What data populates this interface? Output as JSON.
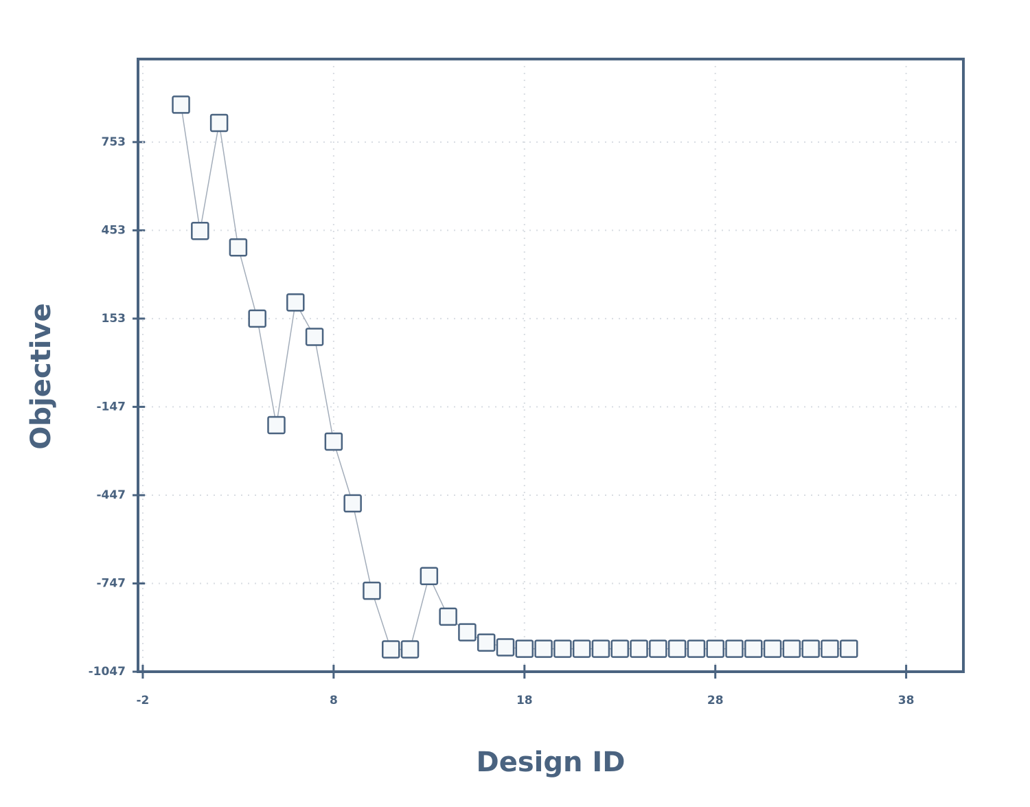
{
  "chart_data": {
    "type": "line",
    "x_label": "Design ID",
    "y_label": "Objective",
    "x": [
      0,
      1,
      2,
      3,
      4,
      5,
      6,
      7,
      8,
      9,
      10,
      11,
      12,
      13,
      14,
      15,
      16,
      17,
      18,
      19,
      20,
      21,
      22,
      23,
      24,
      25,
      26,
      27,
      28,
      29,
      30,
      31,
      32,
      33,
      34,
      35
    ],
    "series": [
      {
        "name": "Objective",
        "color": "#4a6380",
        "line_color": "#a3adba",
        "marker": "square",
        "values": [
          880,
          451,
          818,
          395,
          153,
          -209,
          208,
          91,
          -265,
          -475,
          -772,
          -971,
          -971,
          -722,
          -860,
          -913,
          -948,
          -964,
          -969,
          -969,
          -969,
          -969,
          -969,
          -969,
          -969,
          -969,
          -969,
          -969,
          -969,
          -969,
          -969,
          -969,
          -969,
          -969,
          -969,
          -969
        ]
      }
    ],
    "xlim": [
      -2.25,
      41
    ],
    "xticks": [
      -2,
      8,
      18,
      28,
      38
    ],
    "ylim": [
      -1047,
      1035
    ],
    "yticks": [
      -1047,
      -747,
      -447,
      -147,
      153,
      453,
      753
    ],
    "grid": true
  }
}
